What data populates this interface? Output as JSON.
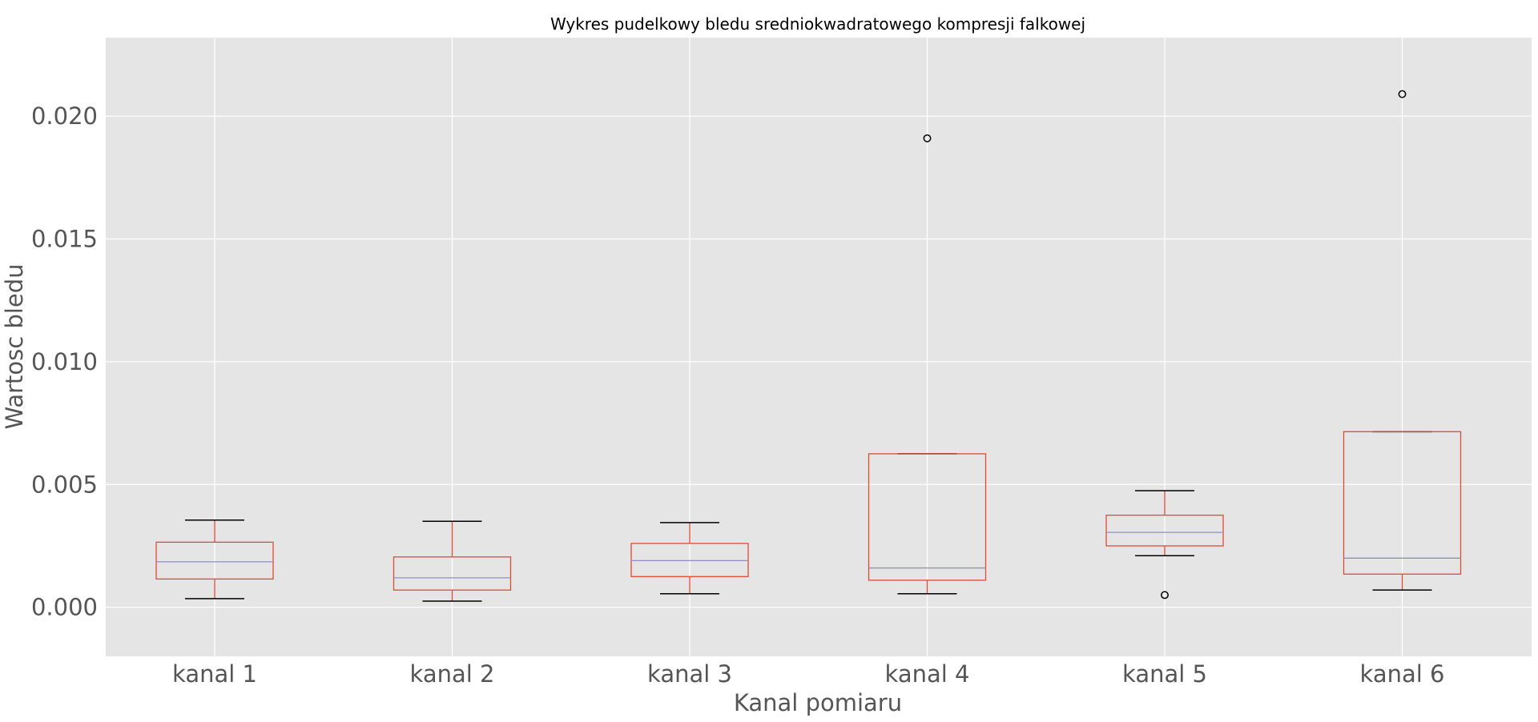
{
  "chart_data": {
    "type": "box",
    "title": "Wykres pudelkowy bledu sredniokwadratowego kompresji falkowej",
    "xlabel": "Kanal pomiaru",
    "ylabel": "Wartosc bledu",
    "ylim": [
      -0.002,
      0.0232
    ],
    "yticks": [
      "0.000",
      "0.005",
      "0.010",
      "0.015",
      "0.020"
    ],
    "ytick_values": [
      0.0,
      0.005,
      0.01,
      0.015,
      0.02
    ],
    "grid": true,
    "categories": [
      "kanal 1",
      "kanal 2",
      "kanal 3",
      "kanal 4",
      "kanal 5",
      "kanal 6"
    ],
    "boxes": [
      {
        "whisker_low": 0.00035,
        "q1": 0.00115,
        "median": 0.00185,
        "q3": 0.00265,
        "whisker_high": 0.00355,
        "outliers": []
      },
      {
        "whisker_low": 0.00025,
        "q1": 0.0007,
        "median": 0.0012,
        "q3": 0.00205,
        "whisker_high": 0.0035,
        "outliers": []
      },
      {
        "whisker_low": 0.00055,
        "q1": 0.00125,
        "median": 0.0019,
        "q3": 0.0026,
        "whisker_high": 0.00345,
        "outliers": []
      },
      {
        "whisker_low": 0.00055,
        "q1": 0.0011,
        "median": 0.0016,
        "q3": 0.00625,
        "whisker_high": 0.00625,
        "outliers": [
          0.0191
        ]
      },
      {
        "whisker_low": 0.0021,
        "q1": 0.0025,
        "median": 0.00305,
        "q3": 0.00375,
        "whisker_high": 0.00475,
        "outliers": [
          0.0005
        ]
      },
      {
        "whisker_low": 0.0007,
        "q1": 0.00135,
        "median": 0.002,
        "q3": 0.00715,
        "whisker_high": 0.00715,
        "outliers": [
          0.0209
        ]
      }
    ],
    "colors": {
      "plot_background": "#e5e5e5",
      "grid": "#ffffff",
      "box": "#e24a33",
      "median": "#8e8ec7",
      "whisker_cap": "#000000",
      "outlier": "#000000"
    }
  }
}
